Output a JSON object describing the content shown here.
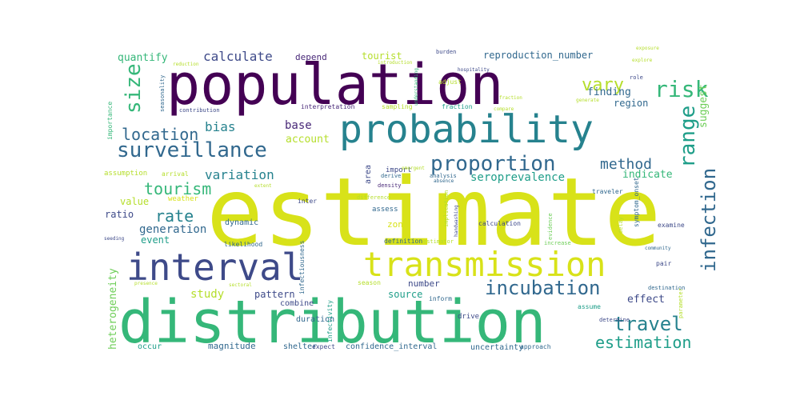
{
  "palette": {
    "deep_purple": "#440154",
    "purple": "#482878",
    "indigo": "#3e4a89",
    "blue": "#31688e",
    "teal": "#26828e",
    "sea_green": "#1f9e89",
    "green": "#35b779",
    "light_green": "#6ece58",
    "lime": "#b5de2b",
    "yellow": "#d8e219"
  },
  "words": [
    {
      "text": "estimate",
      "color": "#d8e219"
    },
    {
      "text": "population",
      "color": "#440154"
    },
    {
      "text": "distribution",
      "color": "#35b779"
    },
    {
      "text": "probability",
      "color": "#26828e"
    },
    {
      "text": "interval",
      "color": "#3e4a89"
    },
    {
      "text": "transmission",
      "color": "#d8e219"
    },
    {
      "text": "surveillance",
      "color": "#31688e"
    },
    {
      "text": "proportion",
      "color": "#31688e"
    },
    {
      "text": "incubation",
      "color": "#31688e"
    },
    {
      "text": "infection",
      "color": "#31688e"
    },
    {
      "text": "location",
      "color": "#31688e"
    },
    {
      "text": "travel",
      "color": "#26828e"
    },
    {
      "text": "estimation",
      "color": "#1f9e89"
    },
    {
      "text": "size",
      "color": "#35b779"
    },
    {
      "text": "risk",
      "color": "#35b779"
    },
    {
      "text": "range",
      "color": "#1f9e89"
    },
    {
      "text": "vary",
      "color": "#b5de2b"
    },
    {
      "text": "tourism",
      "color": "#35b779"
    },
    {
      "text": "rate",
      "color": "#26828e"
    },
    {
      "text": "variation",
      "color": "#26828e"
    },
    {
      "text": "method",
      "color": "#31688e"
    },
    {
      "text": "bias",
      "color": "#26828e"
    },
    {
      "text": "calculate",
      "color": "#3e4a89"
    },
    {
      "text": "generation",
      "color": "#31688e"
    },
    {
      "text": "heterogeneity",
      "color": "#6ece58"
    },
    {
      "text": "seroprevalence",
      "color": "#1f9e89"
    },
    {
      "text": "base",
      "color": "#482878"
    },
    {
      "text": "finding",
      "color": "#31688e"
    },
    {
      "text": "quantify",
      "color": "#35b779"
    },
    {
      "text": "reproduction_number",
      "color": "#31688e"
    },
    {
      "text": "suggest",
      "color": "#6ece58"
    },
    {
      "text": "region",
      "color": "#31688e"
    },
    {
      "text": "account",
      "color": "#b5de2b"
    },
    {
      "text": "indicate",
      "color": "#35b779"
    },
    {
      "text": "study",
      "color": "#b5de2b"
    },
    {
      "text": "pattern",
      "color": "#3e4a89"
    },
    {
      "text": "source",
      "color": "#1f9e89"
    },
    {
      "text": "number",
      "color": "#3e4a89"
    },
    {
      "text": "effect",
      "color": "#3e4a89"
    },
    {
      "text": "magnitude",
      "color": "#31688e"
    },
    {
      "text": "uncertainty",
      "color": "#31688e"
    },
    {
      "text": "confidence_interval",
      "color": "#31688e"
    },
    {
      "text": "tourist",
      "color": "#b5de2b"
    },
    {
      "text": "depend",
      "color": "#482878"
    },
    {
      "text": "event",
      "color": "#1f9e89"
    },
    {
      "text": "value",
      "color": "#b5de2b"
    },
    {
      "text": "ratio",
      "color": "#3e4a89"
    },
    {
      "text": "zone",
      "color": "#d8e219"
    },
    {
      "text": "shelter",
      "color": "#31688e"
    },
    {
      "text": "occur",
      "color": "#1f9e89"
    },
    {
      "text": "duration",
      "color": "#31688e"
    },
    {
      "text": "combine",
      "color": "#3e4a89"
    },
    {
      "text": "drive",
      "color": "#3e4a89"
    },
    {
      "text": "assess",
      "color": "#31688e"
    },
    {
      "text": "area",
      "color": "#3e4a89"
    },
    {
      "text": "import",
      "color": "#3e4a89"
    },
    {
      "text": "dynamic",
      "color": "#31688e"
    },
    {
      "text": "assumption",
      "color": "#b5de2b"
    },
    {
      "text": "arrival",
      "color": "#b5de2b"
    },
    {
      "text": "weather",
      "color": "#d8e219"
    },
    {
      "text": "likelihood",
      "color": "#31688e"
    },
    {
      "text": "infectiousness",
      "color": "#31688e"
    },
    {
      "text": "season",
      "color": "#b5de2b"
    },
    {
      "text": "infectivity",
      "color": "#1f9e89"
    },
    {
      "text": "approach",
      "color": "#31688e"
    },
    {
      "text": "expect",
      "color": "#3e4a89"
    },
    {
      "text": "inform",
      "color": "#31688e"
    },
    {
      "text": "definition",
      "color": "#31688e"
    },
    {
      "text": "estimator",
      "color": "#b5de2b"
    },
    {
      "text": "implication",
      "color": "#b5de2b"
    },
    {
      "text": "calculation",
      "color": "#3e4a89"
    },
    {
      "text": "evidence",
      "color": "#6ece58"
    },
    {
      "text": "increase",
      "color": "#6ece58"
    },
    {
      "text": "assume",
      "color": "#1f9e89"
    },
    {
      "text": "determine",
      "color": "#3e4a89"
    },
    {
      "text": "destination",
      "color": "#31688e"
    },
    {
      "text": "symptom_onset",
      "color": "#31688e"
    },
    {
      "text": "examine",
      "color": "#3e4a89"
    },
    {
      "text": "pair",
      "color": "#3e4a89"
    },
    {
      "text": "parameter",
      "color": "#b5de2b"
    },
    {
      "text": "delay",
      "color": "#b5de2b"
    },
    {
      "text": "importance",
      "color": "#35b779"
    },
    {
      "text": "traveler",
      "color": "#31688e"
    },
    {
      "text": "role",
      "color": "#3e4a89"
    },
    {
      "text": "interpretation",
      "color": "#482878"
    },
    {
      "text": "sampling",
      "color": "#b5de2b"
    },
    {
      "text": "fraction",
      "color": "#1f9e89"
    },
    {
      "text": "adjust",
      "color": "#b5de2b"
    },
    {
      "text": "burden",
      "color": "#3e4a89"
    },
    {
      "text": "explore",
      "color": "#b5de2b"
    },
    {
      "text": "exposure",
      "color": "#b5de2b"
    },
    {
      "text": "seasonality",
      "color": "#31688e"
    },
    {
      "text": "contribution",
      "color": "#3e4a89"
    },
    {
      "text": "difference",
      "color": "#b5de2b"
    },
    {
      "text": "density",
      "color": "#482878"
    },
    {
      "text": "derive",
      "color": "#31688e"
    },
    {
      "text": "analysis",
      "color": "#31688e"
    },
    {
      "text": "extent",
      "color": "#b5de2b"
    },
    {
      "text": "inter",
      "color": "#3e4a89"
    },
    {
      "text": "presence",
      "color": "#b5de2b"
    },
    {
      "text": "handwashing",
      "color": "#3e4a89"
    },
    {
      "text": "hospitality",
      "color": "#3e4a89"
    },
    {
      "text": "introduction",
      "color": "#b5de2b"
    },
    {
      "text": "understanding",
      "color": "#35b779"
    },
    {
      "text": "generate",
      "color": "#b5de2b"
    },
    {
      "text": "community",
      "color": "#31688e"
    },
    {
      "text": "reduction",
      "color": "#b5de2b"
    },
    {
      "text": "sectoral",
      "color": "#b5de2b"
    },
    {
      "text": "seeding",
      "color": "#3e4a89"
    },
    {
      "text": "emergent",
      "color": "#b5de2b"
    },
    {
      "text": "absence",
      "color": "#31688e"
    },
    {
      "text": "compare",
      "color": "#b5de2b"
    },
    {
      "text": "fraction",
      "color": "#b5de2b"
    }
  ]
}
